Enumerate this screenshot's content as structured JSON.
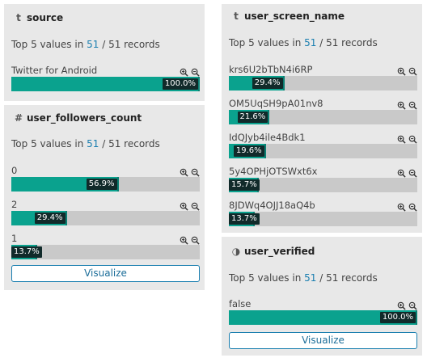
{
  "cards": {
    "source": {
      "type_icon": "t",
      "field": "source",
      "summary_pre": "Top 5 values in ",
      "summary_count": "51",
      "summary_post": " / 51 records",
      "rows": [
        {
          "label": "Twitter for Android",
          "fraction": 1.0,
          "pct": "100.0%"
        }
      ]
    },
    "followers": {
      "type_icon": "#",
      "field": "user_followers_count",
      "summary_pre": "Top 5 values in ",
      "summary_count": "51",
      "summary_post": " / 51 records",
      "rows": [
        {
          "label": "0",
          "fraction": 0.569,
          "pct": "56.9%"
        },
        {
          "label": "2",
          "fraction": 0.294,
          "pct": "29.4%"
        },
        {
          "label": "1",
          "fraction": 0.137,
          "pct": "13.7%"
        }
      ],
      "button": "Visualize"
    },
    "screen_name": {
      "type_icon": "t",
      "field": "user_screen_name",
      "summary_pre": "Top 5 values in ",
      "summary_count": "51",
      "summary_post": " / 51 records",
      "rows": [
        {
          "label": "krs6U2bTbN4i6RP",
          "fraction": 0.294,
          "pct": "29.4%"
        },
        {
          "label": "OM5UqSH9pA01nv8",
          "fraction": 0.216,
          "pct": "21.6%"
        },
        {
          "label": "IdQJyb4ile4Bdk1",
          "fraction": 0.196,
          "pct": "19.6%"
        },
        {
          "label": "5y4OPHjOTSWxt6x",
          "fraction": 0.157,
          "pct": "15.7%"
        },
        {
          "label": "8JDWq4OJJ18aQ4b",
          "fraction": 0.137,
          "pct": "13.7%"
        }
      ]
    },
    "verified": {
      "type_icon": "◑",
      "field": "user_verified",
      "summary_pre": "Top 5 values in ",
      "summary_count": "51",
      "summary_post": " / 51 records",
      "rows": [
        {
          "label": "false",
          "fraction": 1.0,
          "pct": "100.0%"
        }
      ],
      "button": "Visualize"
    }
  },
  "icons": {
    "zoom_in": "zoom-in-icon",
    "zoom_out": "zoom-out-icon"
  },
  "colors": {
    "fill": "#0aa28e",
    "link": "#1b7fb0",
    "card_bg": "#e8e8e8",
    "bar_bg": "#c9c9c9"
  }
}
